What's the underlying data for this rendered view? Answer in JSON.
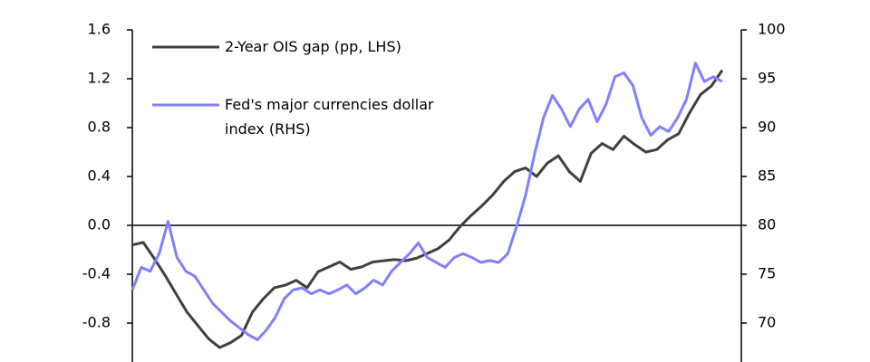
{
  "chart_data": {
    "type": "line",
    "series": [
      {
        "name": "2-Year OIS gap (pp, LHS)",
        "color": "#404040",
        "axis": "y",
        "values": [
          -0.16,
          -0.14,
          -0.27,
          -0.41,
          -0.56,
          -0.71,
          -0.82,
          -0.93,
          -1.0,
          -0.96,
          -0.9,
          -0.71,
          -0.6,
          -0.51,
          -0.49,
          -0.45,
          -0.51,
          -0.38,
          -0.34,
          -0.3,
          -0.36,
          -0.34,
          -0.3,
          -0.29,
          -0.28,
          -0.29,
          -0.27,
          -0.23,
          -0.19,
          -0.12,
          -0.01,
          0.08,
          0.16,
          0.25,
          0.36,
          0.44,
          0.47,
          0.4,
          0.51,
          0.57,
          0.44,
          0.36,
          0.59,
          0.67,
          0.62,
          0.73,
          0.66,
          0.6,
          0.62,
          0.7,
          0.75,
          0.92,
          1.07,
          1.14,
          1.27
        ]
      },
      {
        "name": "Fed's major currencies dollar index (RHS)",
        "color": "#8080ff",
        "axis": "y2",
        "values": [
          73.4,
          75.7,
          75.3,
          77.1,
          80.4,
          76.7,
          75.3,
          74.8,
          73.4,
          72.0,
          71.1,
          70.2,
          69.5,
          68.8,
          68.3,
          69.3,
          70.6,
          72.5,
          73.4,
          73.6,
          73.0,
          73.4,
          73.0,
          73.4,
          73.9,
          73.0,
          73.6,
          74.4,
          73.9,
          75.3,
          76.2,
          77.1,
          78.2,
          76.7,
          76.2,
          75.7,
          76.7,
          77.1,
          76.7,
          76.2,
          76.4,
          76.2,
          77.1,
          79.9,
          83.1,
          87.3,
          91.0,
          93.3,
          91.9,
          90.1,
          91.9,
          92.9,
          90.6,
          92.4,
          95.2,
          95.6,
          94.3,
          91.0,
          89.2,
          90.1,
          89.6,
          91.0,
          92.9,
          96.6,
          94.7,
          95.2,
          94.7
        ]
      }
    ],
    "ylim": [
      -1.1,
      1.6
    ],
    "yticks": [
      1.6,
      1.2,
      0.8,
      0.4,
      {
        "value": 0,
        "label": "0.0"
      },
      -0.4,
      -0.8
    ],
    "y2lim": [
      66.25,
      100
    ],
    "y2ticks": [
      100,
      95,
      90,
      85,
      80,
      75,
      70
    ]
  }
}
